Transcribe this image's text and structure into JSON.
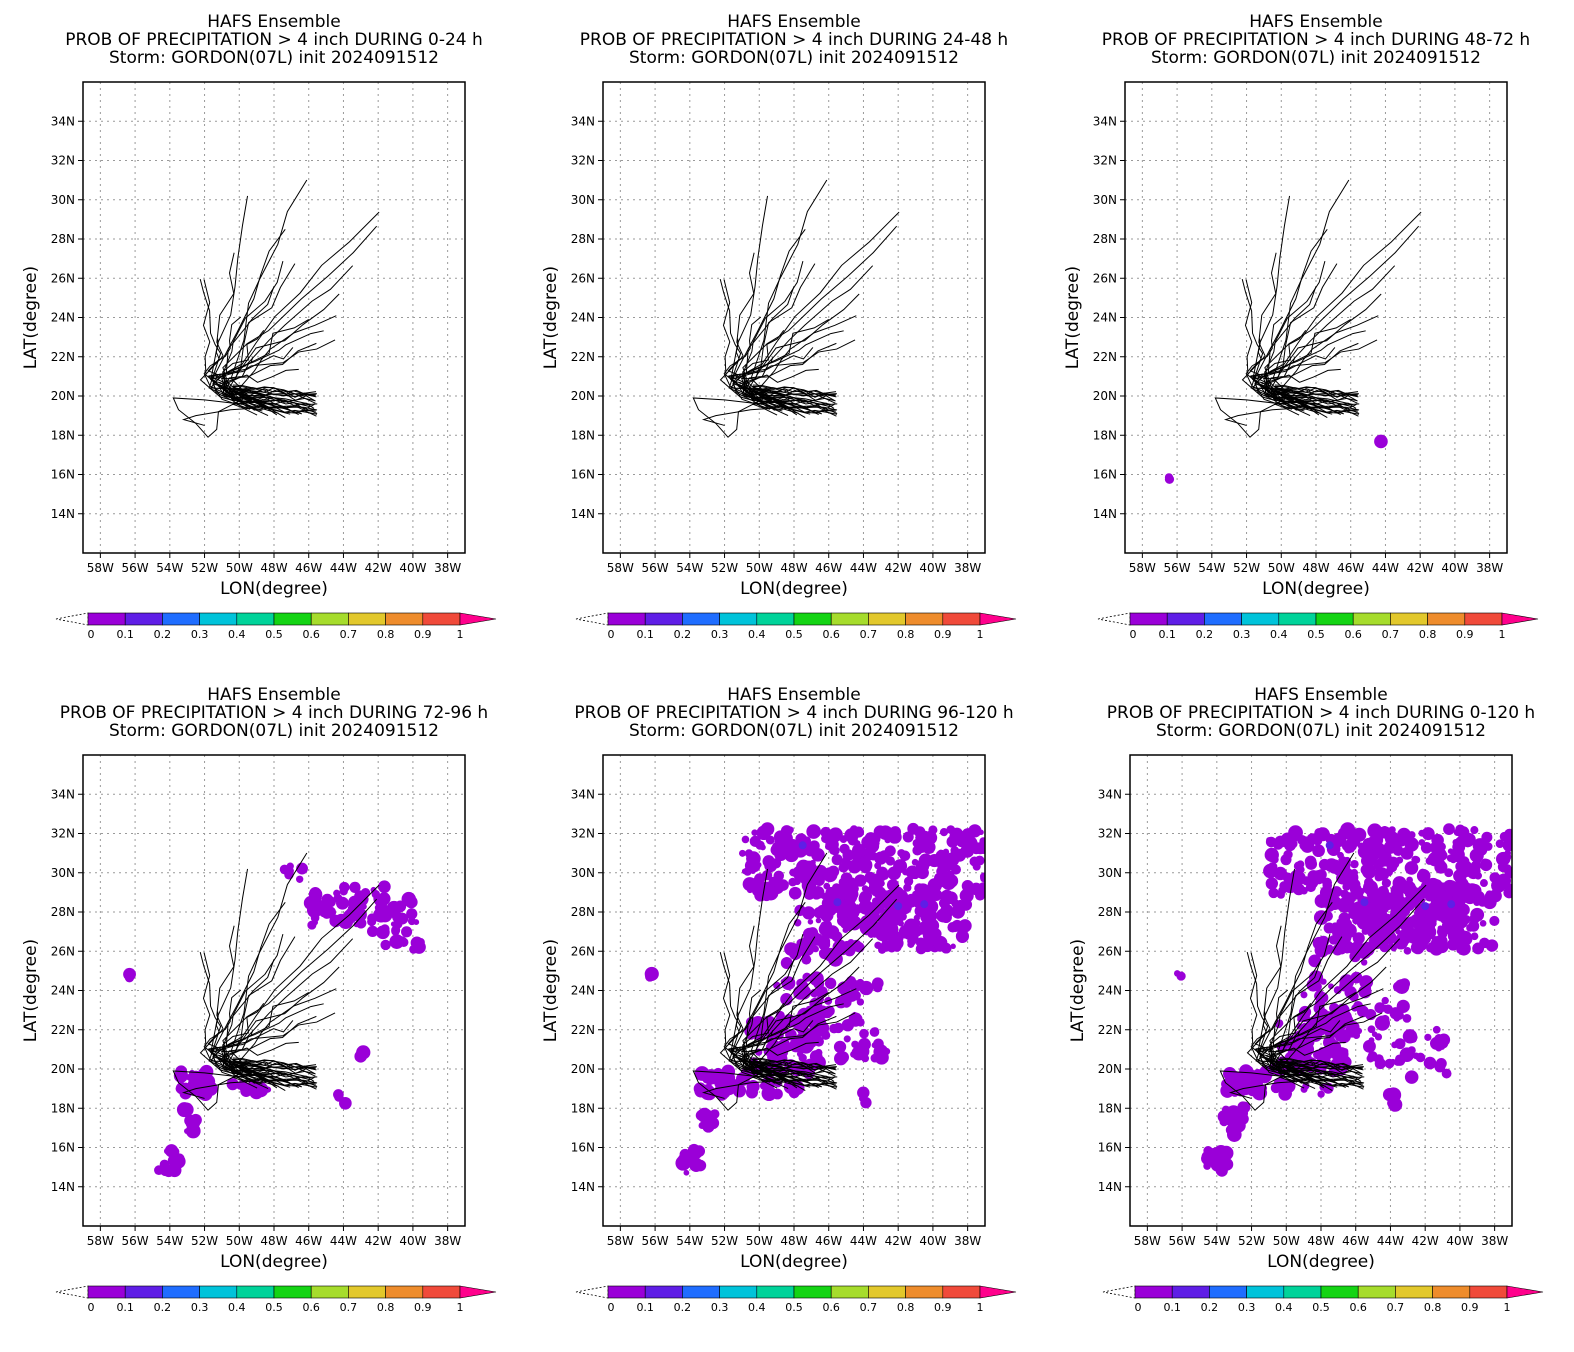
{
  "colors": {
    "track": "#000000",
    "prob_0_0.1": "#9a00d8",
    "prob_0.1_0.2": "#5f1ee6",
    "grid": "#9a9a9a",
    "colorbar": [
      "#9a00d8",
      "#5f1ee6",
      "#1f6dff",
      "#00c3da",
      "#00d39a",
      "#14d414",
      "#a6dc2c",
      "#e2c82c",
      "#ee8c2c",
      "#f04a3a",
      "#ff008c"
    ]
  },
  "colorbar_labels": [
    "0",
    "0.1",
    "0.2",
    "0.3",
    "0.4",
    "0.5",
    "0.6",
    "0.7",
    "0.8",
    "0.9",
    "1"
  ],
  "chart_data": [
    {
      "type": "map",
      "title": "HAFS Ensemble",
      "subtitle": "PROB OF PRECIPITATION > 4 inch DURING  0-24 h",
      "storm_line": "Storm: GORDON(07L) init 2024091512",
      "xlabel": "LON(degree)",
      "ylabel": "LAT(degree)",
      "xticks": [
        "58W",
        "56W",
        "54W",
        "52W",
        "50W",
        "48W",
        "46W",
        "44W",
        "42W",
        "40W",
        "38W"
      ],
      "yticks": [
        "14N",
        "16N",
        "18N",
        "20N",
        "22N",
        "24N",
        "26N",
        "28N",
        "30N",
        "32N",
        "34N"
      ],
      "xlim": [
        -59,
        -37
      ],
      "ylim": [
        12,
        36
      ],
      "grid": true,
      "colorbar_levels": [
        0,
        0.1,
        0.2,
        0.3,
        0.4,
        0.5,
        0.6,
        0.7,
        0.8,
        0.9,
        1
      ],
      "precip_extent": "none"
    },
    {
      "type": "map",
      "title": "HAFS Ensemble",
      "subtitle": "PROB OF PRECIPITATION > 4 inch DURING 24-48 h",
      "storm_line": "Storm: GORDON(07L) init 2024091512",
      "xlabel": "LON(degree)",
      "ylabel": "LAT(degree)",
      "xticks": [
        "58W",
        "56W",
        "54W",
        "52W",
        "50W",
        "48W",
        "46W",
        "44W",
        "42W",
        "40W",
        "38W"
      ],
      "yticks": [
        "14N",
        "16N",
        "18N",
        "20N",
        "22N",
        "24N",
        "26N",
        "28N",
        "30N",
        "32N",
        "34N"
      ],
      "xlim": [
        -59,
        -37
      ],
      "ylim": [
        12,
        36
      ],
      "grid": true,
      "colorbar_levels": [
        0,
        0.1,
        0.2,
        0.3,
        0.4,
        0.5,
        0.6,
        0.7,
        0.8,
        0.9,
        1
      ],
      "precip_extent": "none"
    },
    {
      "type": "map",
      "title": "HAFS Ensemble",
      "subtitle": "PROB OF PRECIPITATION > 4 inch DURING 48-72 h",
      "storm_line": "Storm: GORDON(07L) init 2024091512",
      "xlabel": "LON(degree)",
      "ylabel": "LAT(degree)",
      "xticks": [
        "58W",
        "56W",
        "54W",
        "52W",
        "50W",
        "48W",
        "46W",
        "44W",
        "42W",
        "40W",
        "38W"
      ],
      "yticks": [
        "14N",
        "16N",
        "18N",
        "20N",
        "22N",
        "24N",
        "26N",
        "28N",
        "30N",
        "32N",
        "34N"
      ],
      "xlim": [
        -59,
        -37
      ],
      "ylim": [
        12,
        36
      ],
      "grid": true,
      "colorbar_levels": [
        0,
        0.1,
        0.2,
        0.3,
        0.4,
        0.5,
        0.6,
        0.7,
        0.8,
        0.9,
        1
      ],
      "precip_extent": "isolated"
    },
    {
      "type": "map",
      "title": "HAFS Ensemble",
      "subtitle": "PROB OF PRECIPITATION > 4 inch DURING 72-96 h",
      "storm_line": "Storm: GORDON(07L) init 2024091512",
      "xlabel": "LON(degree)",
      "ylabel": "LAT(degree)",
      "xticks": [
        "58W",
        "56W",
        "54W",
        "52W",
        "50W",
        "48W",
        "46W",
        "44W",
        "42W",
        "40W",
        "38W"
      ],
      "yticks": [
        "14N",
        "16N",
        "18N",
        "20N",
        "22N",
        "24N",
        "26N",
        "28N",
        "30N",
        "32N",
        "34N"
      ],
      "xlim": [
        -59,
        -37
      ],
      "ylim": [
        12,
        36
      ],
      "grid": true,
      "colorbar_levels": [
        0,
        0.1,
        0.2,
        0.3,
        0.4,
        0.5,
        0.6,
        0.7,
        0.8,
        0.9,
        1
      ],
      "precip_extent": "moderate"
    },
    {
      "type": "map",
      "title": "HAFS Ensemble",
      "subtitle": "PROB OF PRECIPITATION > 4 inch DURING 96-120 h",
      "storm_line": "Storm: GORDON(07L) init 2024091512",
      "xlabel": "LON(degree)",
      "ylabel": "LAT(degree)",
      "xticks": [
        "58W",
        "56W",
        "54W",
        "52W",
        "50W",
        "48W",
        "46W",
        "44W",
        "42W",
        "40W",
        "38W"
      ],
      "yticks": [
        "14N",
        "16N",
        "18N",
        "20N",
        "22N",
        "24N",
        "26N",
        "28N",
        "30N",
        "32N",
        "34N"
      ],
      "xlim": [
        -59,
        -37
      ],
      "ylim": [
        12,
        36
      ],
      "grid": true,
      "colorbar_levels": [
        0,
        0.1,
        0.2,
        0.3,
        0.4,
        0.5,
        0.6,
        0.7,
        0.8,
        0.9,
        1
      ],
      "precip_extent": "widespread"
    },
    {
      "type": "map",
      "title": "HAFS Ensemble",
      "subtitle": "PROB OF PRECIPITATION > 4 inch DURING 0-120 h",
      "storm_line": "Storm: GORDON(07L) init 2024091512",
      "xlabel": "LON(degree)",
      "ylabel": "LAT(degree)",
      "xticks": [
        "58W",
        "56W",
        "54W",
        "52W",
        "50W",
        "48W",
        "46W",
        "44W",
        "42W",
        "40W",
        "38W"
      ],
      "yticks": [
        "14N",
        "16N",
        "18N",
        "20N",
        "22N",
        "24N",
        "26N",
        "28N",
        "30N",
        "32N",
        "34N"
      ],
      "xlim": [
        -59,
        -37
      ],
      "ylim": [
        12,
        36
      ],
      "grid": true,
      "colorbar_levels": [
        0,
        0.1,
        0.2,
        0.3,
        0.4,
        0.5,
        0.6,
        0.7,
        0.8,
        0.9,
        1
      ],
      "precip_extent": "widespread"
    }
  ]
}
